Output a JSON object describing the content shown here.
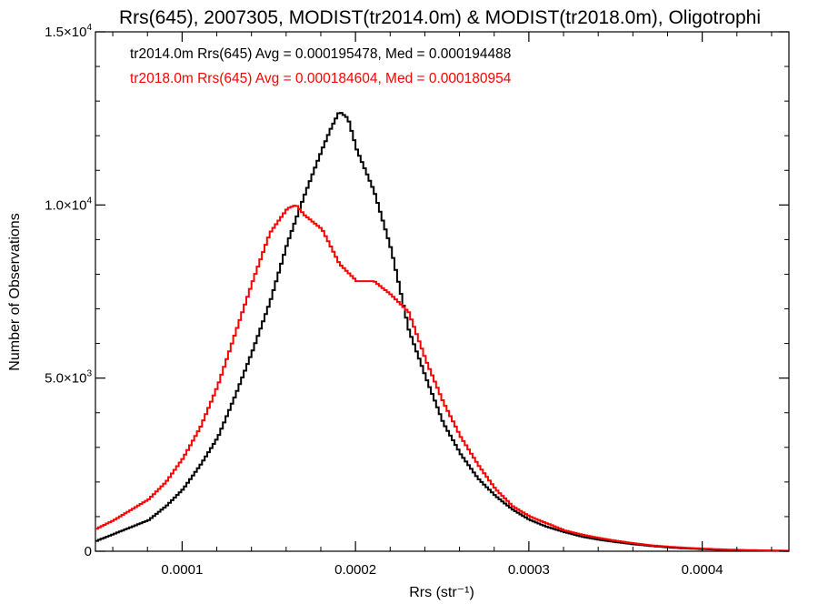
{
  "chart_data": {
    "type": "line",
    "title": "Rrs(645), 2007305, MODIST(tr2014.0m) & MODIST(tr2018.0m), Oligotrophi",
    "xlabel": "Rrs (str⁻¹)",
    "ylabel": "Number of Observations",
    "xlim": [
      5e-05,
      0.00045
    ],
    "ylim": [
      0,
      15000
    ],
    "x_ticks": [
      {
        "value": 0.0001,
        "label": "0.0001"
      },
      {
        "value": 0.0002,
        "label": "0.0002"
      },
      {
        "value": 0.0003,
        "label": "0.0003"
      },
      {
        "value": 0.0004,
        "label": "0.0004"
      }
    ],
    "y_ticks": [
      {
        "value": 0,
        "mant": "0",
        "exp": ""
      },
      {
        "value": 5000,
        "mant": "5.0×10",
        "exp": "3"
      },
      {
        "value": 10000,
        "mant": "1.0×10",
        "exp": "4"
      },
      {
        "value": 15000,
        "mant": "1.5×10",
        "exp": "4"
      }
    ],
    "grid": false,
    "legend_position": "top-left",
    "series": [
      {
        "name": "tr2014.0m",
        "color": "#000000",
        "stat_text": "tr2014.0m Rrs(645) Avg = 0.000195478, Med = 0.000194488",
        "x": [
          5e-05,
          6e-05,
          7e-05,
          8e-05,
          9e-05,
          0.0001,
          0.00011,
          0.00012,
          0.00013,
          0.00014,
          0.00015,
          0.00016,
          0.00017,
          0.00018,
          0.000185,
          0.00019,
          0.000195,
          0.0002,
          0.00021,
          0.00022,
          0.00023,
          0.00024,
          0.00025,
          0.00026,
          0.00027,
          0.00028,
          0.00029,
          0.0003,
          0.00031,
          0.00032,
          0.00033,
          0.00034,
          0.00035,
          0.00036,
          0.00037,
          0.00038,
          0.00039,
          0.0004,
          0.00041,
          0.00042,
          0.00043,
          0.00044,
          0.00045
        ],
        "y": [
          300,
          500,
          700,
          900,
          1300,
          1800,
          2500,
          3300,
          4500,
          5800,
          7200,
          8900,
          10300,
          11600,
          12200,
          12700,
          12500,
          11600,
          10400,
          8700,
          6400,
          5000,
          3700,
          2800,
          2100,
          1600,
          1200,
          900,
          700,
          550,
          420,
          330,
          260,
          200,
          150,
          110,
          80,
          60,
          40,
          30,
          20,
          15,
          10
        ]
      },
      {
        "name": "tr2018.0m",
        "color": "#ff0000",
        "stat_text": "tr2018.0m Rrs(645) Avg = 0.000184604, Med = 0.000180954",
        "x": [
          5e-05,
          6e-05,
          7e-05,
          8e-05,
          9e-05,
          0.0001,
          0.00011,
          0.00012,
          0.00013,
          0.00014,
          0.00015,
          0.00016,
          0.000165,
          0.00017,
          0.00018,
          0.00019,
          0.0002,
          0.00021,
          0.00022,
          0.00023,
          0.00024,
          0.00025,
          0.00026,
          0.00027,
          0.00028,
          0.00029,
          0.0003,
          0.00031,
          0.00032,
          0.00033,
          0.00034,
          0.00035,
          0.00036,
          0.00037,
          0.00038,
          0.00039,
          0.0004,
          0.00041,
          0.00042,
          0.00043,
          0.00044,
          0.00045
        ],
        "y": [
          650,
          900,
          1200,
          1500,
          2000,
          2700,
          3600,
          4800,
          6300,
          7800,
          9200,
          9900,
          10000,
          9700,
          9300,
          8300,
          7800,
          7800,
          7400,
          6900,
          5500,
          4300,
          3300,
          2500,
          1800,
          1300,
          1000,
          800,
          600,
          480,
          380,
          300,
          230,
          170,
          130,
          100,
          75,
          55,
          40,
          30,
          20,
          15
        ]
      }
    ]
  }
}
